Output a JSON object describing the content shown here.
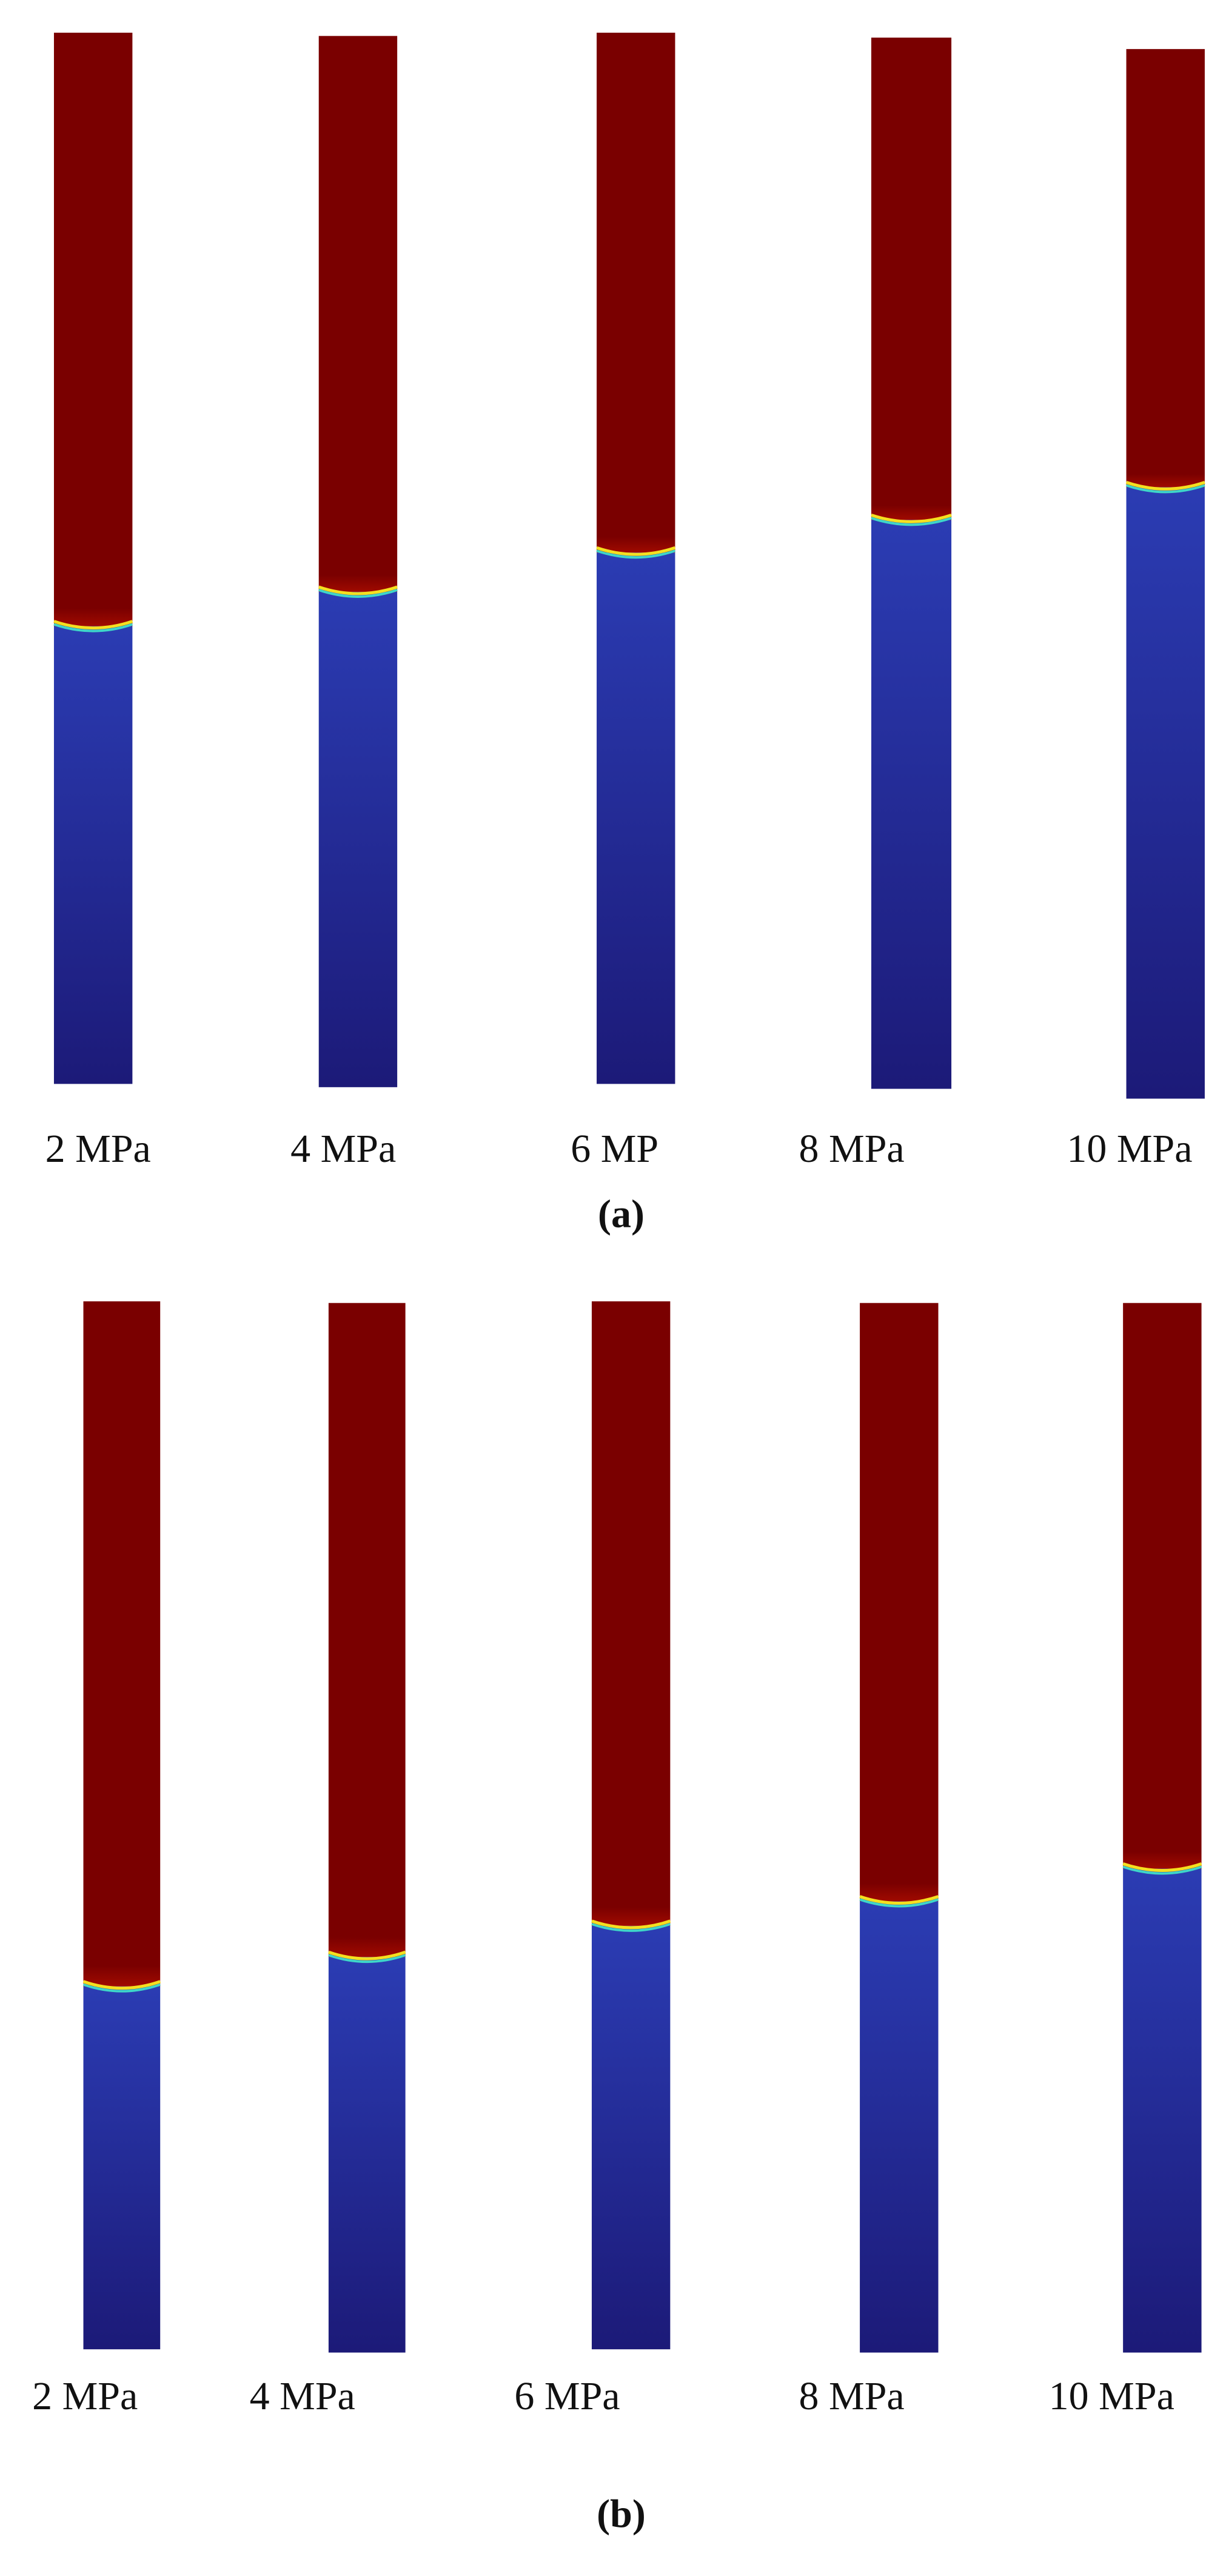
{
  "panels": [
    {
      "caption": "(a)",
      "columns": [
        {
          "label": "2 MPa"
        },
        {
          "label": "4 MPa"
        },
        {
          "label": "6 MP"
        },
        {
          "label": "8 MPa"
        },
        {
          "label": "10 MPa"
        }
      ]
    },
    {
      "caption": "(b)",
      "columns": [
        {
          "label": "2 MPa"
        },
        {
          "label": "4 MPa"
        },
        {
          "label": "6 MPa"
        },
        {
          "label": "8 MPa"
        },
        {
          "label": "10 MPa"
        }
      ]
    }
  ]
}
